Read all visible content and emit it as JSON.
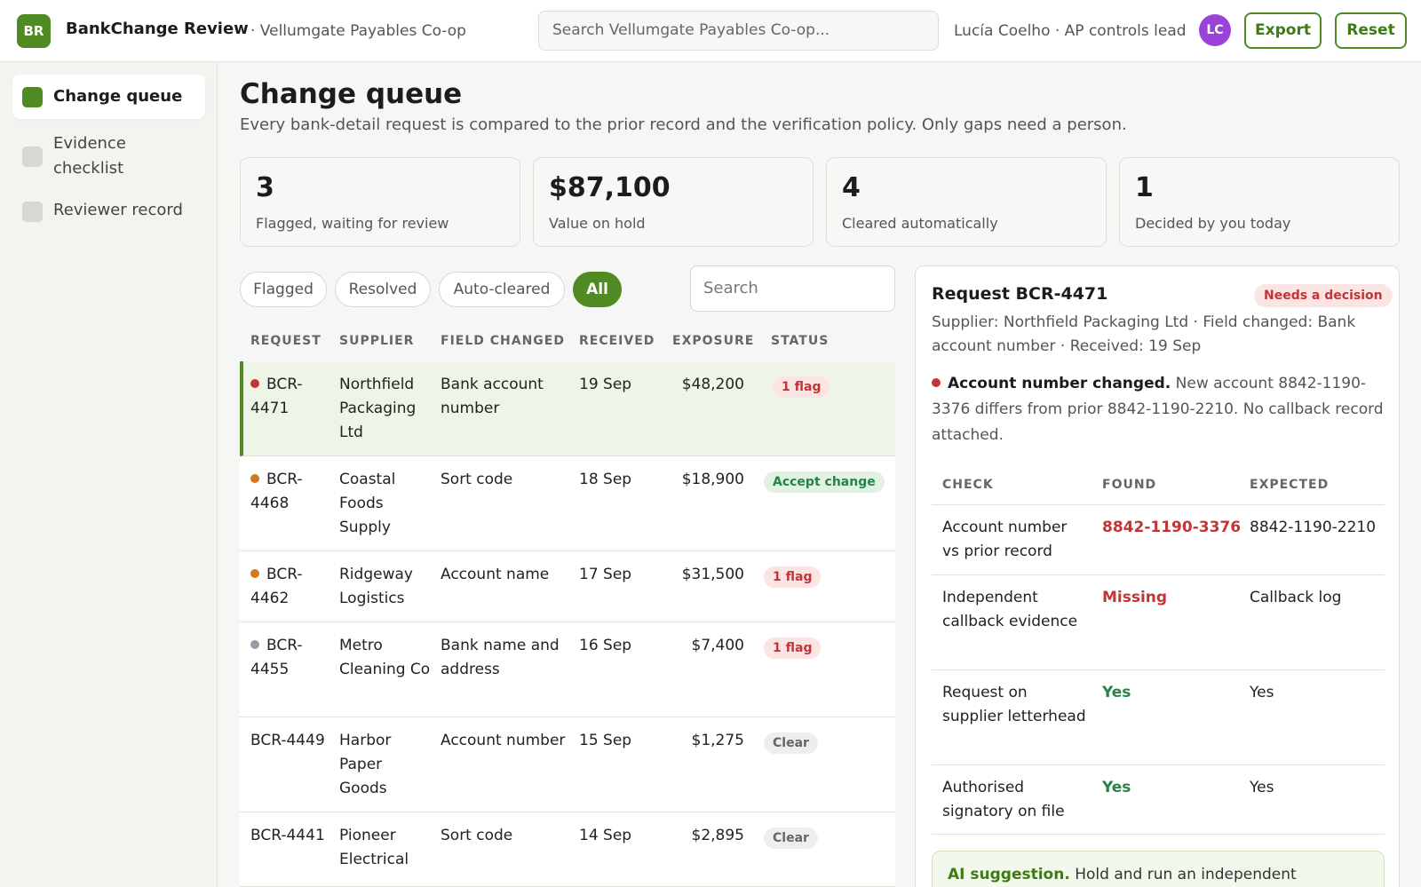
{
  "header": {
    "logo_initials": "BR",
    "app_title": "BankChange Review",
    "org": "· Vellumgate Payables Co-op",
    "search_placeholder": "Search Vellumgate Payables Co-op...",
    "user": "Lucía Coelho · AP controls lead",
    "avatar_initials": "LC",
    "export_label": "Export",
    "reset_label": "Reset"
  },
  "sidebar": {
    "items": [
      {
        "label": "Change queue",
        "active": true
      },
      {
        "label": "Evidence checklist",
        "active": false
      },
      {
        "label": "Reviewer record",
        "active": false
      }
    ]
  },
  "main": {
    "title": "Change queue",
    "subtitle": "Every bank-detail request is compared to the prior record and the verification policy. Only gaps need a person.",
    "stats": [
      {
        "value": "3",
        "label": "Flagged, waiting for review"
      },
      {
        "value": "$87,100",
        "label": "Value on hold"
      },
      {
        "value": "4",
        "label": "Cleared automatically"
      },
      {
        "value": "1",
        "label": "Decided by you today"
      }
    ],
    "filters": [
      "Flagged",
      "Resolved",
      "Auto-cleared",
      "All"
    ],
    "active_filter": "All",
    "table_search_placeholder": "Search",
    "columns": [
      "REQUEST",
      "SUPPLIER",
      "FIELD CHANGED",
      "RECEIVED",
      "EXPOSURE",
      "STATUS"
    ],
    "rows": [
      {
        "request": "BCR-4471",
        "supplier": "Northfield Packaging Ltd",
        "field": "Bank account number",
        "received": "19 Sep",
        "exposure": "$48,200",
        "status": "1 flag",
        "status_kind": "flag",
        "dot": "#c43434",
        "selected": true
      },
      {
        "request": "BCR-4468",
        "supplier": "Coastal Foods Supply",
        "field": "Sort code",
        "received": "18 Sep",
        "exposure": "$18,900",
        "status": "Accept change",
        "status_kind": "accept",
        "dot": "#d07a1f",
        "selected": false
      },
      {
        "request": "BCR-4462",
        "supplier": "Ridgeway Logistics",
        "field": "Account name",
        "received": "17 Sep",
        "exposure": "$31,500",
        "status": "1 flag",
        "status_kind": "flag",
        "dot": "#d07a1f",
        "selected": false
      },
      {
        "request": "BCR-4455",
        "supplier": "Metro Cleaning Co",
        "field": "Bank name and address",
        "received": "16 Sep",
        "exposure": "$7,400",
        "status": "1 flag",
        "status_kind": "flag",
        "dot": "#9a9aa8",
        "selected": false
      },
      {
        "request": "BCR-4449",
        "supplier": "Harbor Paper Goods",
        "field": "Account number",
        "received": "15 Sep",
        "exposure": "$1,275",
        "status": "Clear",
        "status_kind": "clear",
        "dot": "",
        "selected": false
      },
      {
        "request": "BCR-4441",
        "supplier": "Pioneer Electrical",
        "field": "Sort code",
        "received": "14 Sep",
        "exposure": "$2,895",
        "status": "Clear",
        "status_kind": "clear",
        "dot": "",
        "selected": false
      }
    ]
  },
  "detail": {
    "title": "Request BCR-4471",
    "badge": "Needs a decision",
    "meta": "Supplier: Northfield Packaging Ltd · Field changed: Bank account number · Received: 19 Sep",
    "finding_title": "Account number changed.",
    "finding_text": "New account 8842-1190-3376 differs from prior 8842-1190-2210. No callback record attached.",
    "finding_dot": "#c43434",
    "check_columns": [
      "CHECK",
      "FOUND",
      "EXPECTED"
    ],
    "checks": [
      {
        "check": "Account number vs prior record",
        "found": "8842-1190-3376",
        "found_ok": false,
        "expected": "8842-1190-2210"
      },
      {
        "check": "Independent callback evidence",
        "found": "Missing",
        "found_ok": false,
        "expected": "Callback log"
      },
      {
        "check": "Request on supplier letterhead",
        "found": "Yes",
        "found_ok": true,
        "expected": "Yes"
      },
      {
        "check": "Authorised signatory on file",
        "found": "Yes",
        "found_ok": true,
        "expected": "Yes"
      }
    ],
    "ai_label": "AI suggestion.",
    "ai_text": "Hold and run an independent"
  }
}
